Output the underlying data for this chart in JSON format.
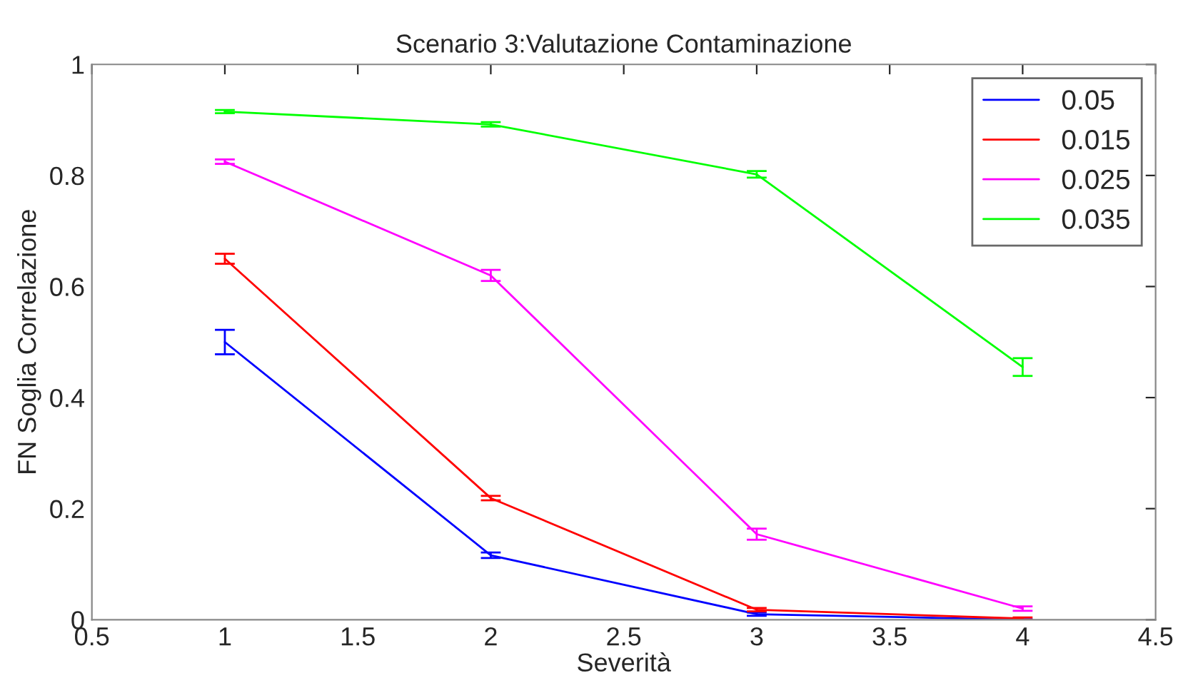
{
  "chart_data": {
    "type": "line",
    "title": "Scenario 3:Valutazione Contaminazione",
    "xlabel": "Severità",
    "ylabel": "FN Soglia Correlazione",
    "x": [
      1,
      2,
      3,
      4
    ],
    "series": [
      {
        "name": "0.05",
        "color": "#0000ff",
        "values": [
          0.5,
          0.116,
          0.01,
          0.0
        ],
        "errors": [
          0.022,
          0.005,
          0.003,
          0.001
        ]
      },
      {
        "name": "0.015",
        "color": "#ff0000",
        "values": [
          0.65,
          0.219,
          0.018,
          0.002
        ],
        "errors": [
          0.009,
          0.004,
          0.003,
          0.002
        ]
      },
      {
        "name": "0.025",
        "color": "#ff00ff",
        "values": [
          0.825,
          0.62,
          0.154,
          0.02
        ],
        "errors": [
          0.004,
          0.01,
          0.01,
          0.004
        ]
      },
      {
        "name": "0.035",
        "color": "#00ff00",
        "values": [
          0.915,
          0.892,
          0.802,
          0.455
        ],
        "errors": [
          0.003,
          0.004,
          0.006,
          0.016
        ]
      }
    ],
    "xlim": [
      0.5,
      4.5
    ],
    "xticks": [
      0.5,
      1,
      1.5,
      2,
      2.5,
      3,
      3.5,
      4,
      4.5
    ],
    "ylim": [
      0,
      1
    ],
    "yticks": [
      0,
      0.2,
      0.4,
      0.6,
      0.8,
      1
    ],
    "grid": false,
    "legend": "top right",
    "marker": "none",
    "line_style": "solid"
  }
}
